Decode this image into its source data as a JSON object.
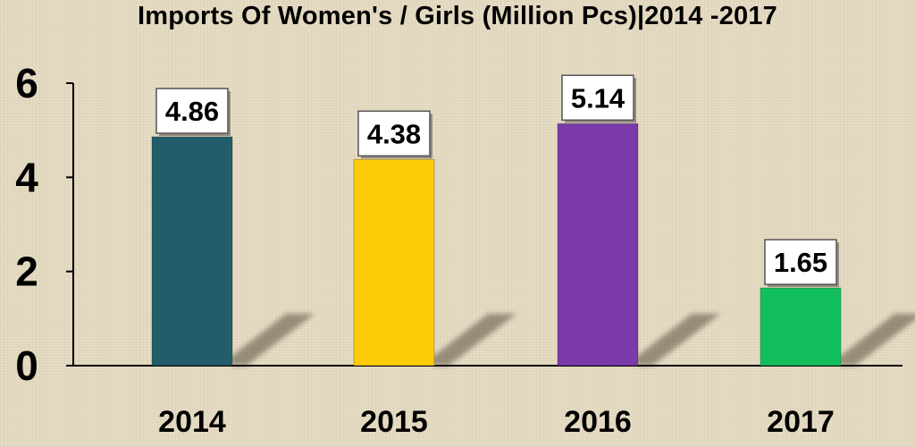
{
  "chart_data": {
    "type": "bar",
    "title": "Imports Of Women's / Girls (Million Pcs)|2014 -2017",
    "xlabel": "",
    "ylabel": "",
    "categories": [
      "2014",
      "2015",
      "2016",
      "2017"
    ],
    "values": [
      4.86,
      4.38,
      5.14,
      1.65
    ],
    "data_labels": [
      "4.86",
      "4.38",
      "5.14",
      "1.65"
    ],
    "colors": [
      "#235d6a",
      "#fccc08",
      "#7a3aaa",
      "#12bf5e"
    ],
    "ylim": [
      0,
      6
    ],
    "yticks": [
      0,
      2,
      4,
      6
    ],
    "ytick_labels": [
      "0",
      "2",
      "4",
      "6"
    ],
    "grid": false,
    "legend": "none"
  }
}
